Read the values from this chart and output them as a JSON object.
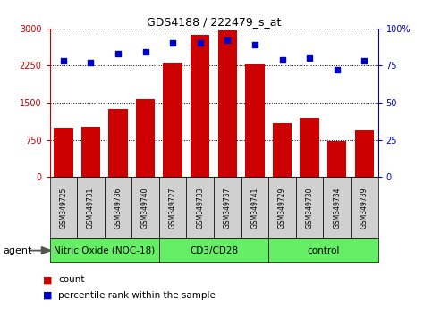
{
  "title": "GDS4188 / 222479_s_at",
  "samples": [
    "GSM349725",
    "GSM349731",
    "GSM349736",
    "GSM349740",
    "GSM349727",
    "GSM349733",
    "GSM349737",
    "GSM349741",
    "GSM349729",
    "GSM349730",
    "GSM349734",
    "GSM349739"
  ],
  "counts": [
    1000,
    1010,
    1380,
    1570,
    2300,
    2870,
    2960,
    2270,
    1080,
    1200,
    730,
    950
  ],
  "percentile_ranks": [
    78,
    77,
    83,
    84,
    90,
    90,
    92,
    89,
    79,
    80,
    72,
    78
  ],
  "groups": [
    {
      "label": "Nitric Oxide (NOC-18)",
      "start": 0,
      "end": 3,
      "color": "#66EE66"
    },
    {
      "label": "CD3/CD28",
      "start": 4,
      "end": 7,
      "color": "#66EE66"
    },
    {
      "label": "control",
      "start": 8,
      "end": 11,
      "color": "#66EE66"
    }
  ],
  "bar_color": "#CC0000",
  "dot_color": "#0000CC",
  "ylim_left": [
    0,
    3000
  ],
  "ylim_right": [
    0,
    100
  ],
  "yticks_left": [
    0,
    750,
    1500,
    2250,
    3000
  ],
  "ytick_labels_left": [
    "0",
    "750",
    "1500",
    "2250",
    "3000"
  ],
  "yticks_right": [
    0,
    25,
    50,
    75,
    100
  ],
  "ytick_labels_right": [
    "0",
    "25",
    "50",
    "75",
    "100%"
  ],
  "left_axis_color": "#CC0000",
  "right_axis_color": "#0000CC",
  "background_color": "#ffffff",
  "plot_bg_color": "#ffffff",
  "agent_label": "agent",
  "legend_count": "count",
  "legend_percentile": "percentile rank within the sample",
  "sample_box_color": "#d0d0d0"
}
